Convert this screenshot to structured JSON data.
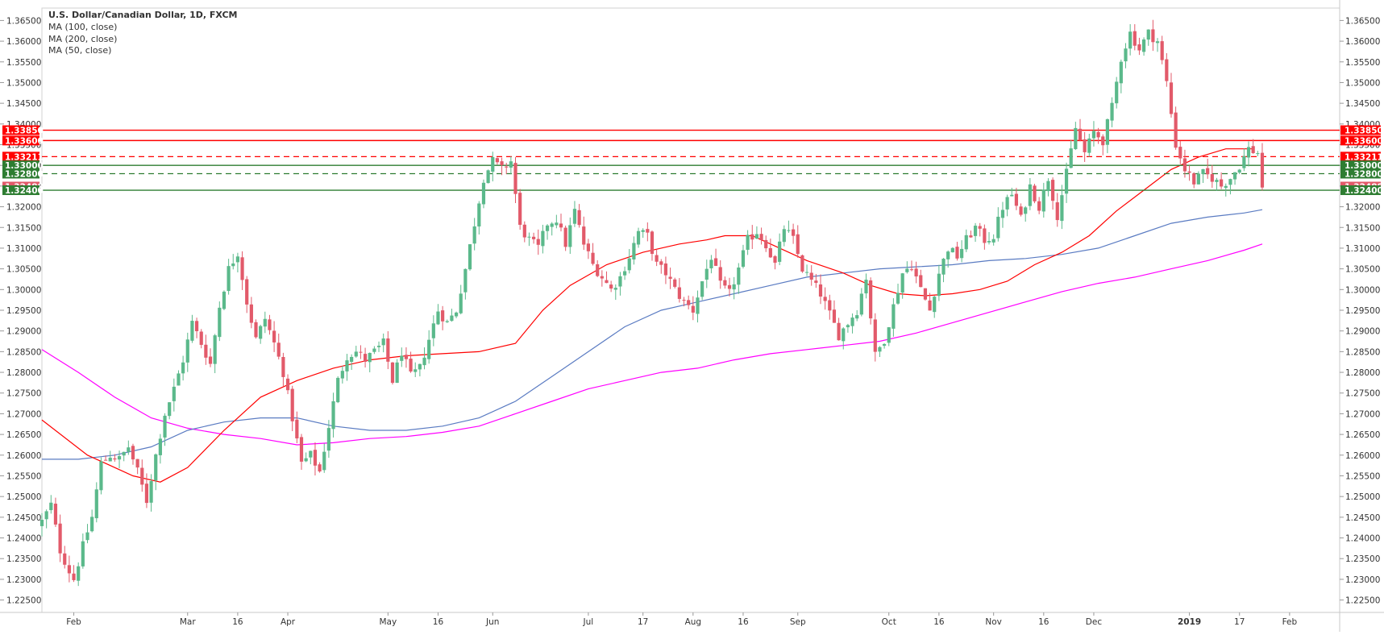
{
  "legend": {
    "title": "U.S. Dollar/Canadian Dollar, 1D, FXCM",
    "lines": [
      "MA (100, close)",
      "MA (200, close)",
      "MA (50, close)"
    ]
  },
  "colors": {
    "bull": "#5BB98B",
    "bear": "#E25A6A",
    "ma50": "#FF0000",
    "ma100": "#5A7BC2",
    "ma200": "#FF00FF",
    "resistance": "#FF0000",
    "support": "#2E7D32",
    "current_price": "#E25A6A"
  },
  "chart_data": {
    "type": "candlestick",
    "instrument": "U.S. Dollar/Canadian Dollar",
    "timeframe": "1D",
    "source": "FXCM",
    "ylim": [
      1.222,
      1.368
    ],
    "y_ticks": [
      "1.22500",
      "1.23000",
      "1.23500",
      "1.24000",
      "1.24500",
      "1.25000",
      "1.25500",
      "1.26000",
      "1.26500",
      "1.27000",
      "1.27500",
      "1.28000",
      "1.28500",
      "1.29000",
      "1.29500",
      "1.30000",
      "1.30500",
      "1.31000",
      "1.31500",
      "1.32000",
      "1.32500",
      "1.33000",
      "1.33500",
      "1.34000",
      "1.34500",
      "1.35000",
      "1.35500",
      "1.36000",
      "1.36500"
    ],
    "x_ticks": [
      {
        "label": "Feb",
        "day": 27,
        "bold": false
      },
      {
        "label": "Mar",
        "day": 52,
        "bold": false
      },
      {
        "label": "16",
        "day": 63,
        "bold": false
      },
      {
        "label": "Apr",
        "day": 74,
        "bold": false
      },
      {
        "label": "May",
        "day": 96,
        "bold": false
      },
      {
        "label": "16",
        "day": 107,
        "bold": false
      },
      {
        "label": "Jun",
        "day": 119,
        "bold": false
      },
      {
        "label": "Jul",
        "day": 140,
        "bold": false
      },
      {
        "label": "17",
        "day": 152,
        "bold": false
      },
      {
        "label": "Aug",
        "day": 163,
        "bold": false
      },
      {
        "label": "16",
        "day": 174,
        "bold": false
      },
      {
        "label": "Sep",
        "day": 186,
        "bold": false
      },
      {
        "label": "Oct",
        "day": 206,
        "bold": false
      },
      {
        "label": "16",
        "day": 217,
        "bold": false
      },
      {
        "label": "Nov",
        "day": 229,
        "bold": false
      },
      {
        "label": "16",
        "day": 240,
        "bold": false
      },
      {
        "label": "Dec",
        "day": 251,
        "bold": false
      },
      {
        "label": "2019",
        "day": 272,
        "bold": true
      },
      {
        "label": "17",
        "day": 283,
        "bold": false
      },
      {
        "label": "Feb",
        "day": 294,
        "bold": false
      }
    ],
    "x_range_days": [
      20,
      305
    ],
    "close_anchors": [
      [
        20,
        1.244
      ],
      [
        22,
        1.248
      ],
      [
        24,
        1.237
      ],
      [
        26,
        1.232
      ],
      [
        27,
        1.23
      ],
      [
        29,
        1.238
      ],
      [
        31,
        1.245
      ],
      [
        33,
        1.258
      ],
      [
        35,
        1.26
      ],
      [
        37,
        1.259
      ],
      [
        39,
        1.262
      ],
      [
        41,
        1.256
      ],
      [
        43,
        1.249
      ],
      [
        45,
        1.26
      ],
      [
        47,
        1.27
      ],
      [
        49,
        1.276
      ],
      [
        51,
        1.283
      ],
      [
        53,
        1.292
      ],
      [
        55,
        1.287
      ],
      [
        57,
        1.282
      ],
      [
        59,
        1.296
      ],
      [
        61,
        1.305
      ],
      [
        63,
        1.309
      ],
      [
        65,
        1.297
      ],
      [
        67,
        1.288
      ],
      [
        69,
        1.293
      ],
      [
        71,
        1.287
      ],
      [
        73,
        1.28
      ],
      [
        75,
        1.269
      ],
      [
        77,
        1.258
      ],
      [
        79,
        1.26
      ],
      [
        81,
        1.256
      ],
      [
        83,
        1.267
      ],
      [
        85,
        1.278
      ],
      [
        87,
        1.284
      ],
      [
        89,
        1.285
      ],
      [
        91,
        1.283
      ],
      [
        93,
        1.285
      ],
      [
        95,
        1.287
      ],
      [
        97,
        1.278
      ],
      [
        99,
        1.285
      ],
      [
        101,
        1.279
      ],
      [
        103,
        1.281
      ],
      [
        105,
        1.288
      ],
      [
        107,
        1.295
      ],
      [
        109,
        1.292
      ],
      [
        111,
        1.295
      ],
      [
        113,
        1.305
      ],
      [
        115,
        1.316
      ],
      [
        117,
        1.327
      ],
      [
        119,
        1.331
      ],
      [
        121,
        1.329
      ],
      [
        123,
        1.331
      ],
      [
        125,
        1.315
      ],
      [
        127,
        1.312
      ],
      [
        129,
        1.31
      ],
      [
        131,
        1.316
      ],
      [
        133,
        1.317
      ],
      [
        135,
        1.311
      ],
      [
        137,
        1.319
      ],
      [
        139,
        1.311
      ],
      [
        141,
        1.306
      ],
      [
        143,
        1.303
      ],
      [
        145,
        1.3
      ],
      [
        147,
        1.303
      ],
      [
        149,
        1.308
      ],
      [
        151,
        1.314
      ],
      [
        153,
        1.313
      ],
      [
        155,
        1.306
      ],
      [
        157,
        1.304
      ],
      [
        159,
        1.3
      ],
      [
        161,
        1.297
      ],
      [
        163,
        1.295
      ],
      [
        165,
        1.302
      ],
      [
        167,
        1.308
      ],
      [
        169,
        1.301
      ],
      [
        171,
        1.299
      ],
      [
        173,
        1.305
      ],
      [
        175,
        1.312
      ],
      [
        177,
        1.314
      ],
      [
        179,
        1.311
      ],
      [
        181,
        1.306
      ],
      [
        183,
        1.315
      ],
      [
        185,
        1.312
      ],
      [
        187,
        1.305
      ],
      [
        189,
        1.302
      ],
      [
        191,
        1.299
      ],
      [
        193,
        1.294
      ],
      [
        195,
        1.289
      ],
      [
        197,
        1.292
      ],
      [
        199,
        1.295
      ],
      [
        201,
        1.303
      ],
      [
        203,
        1.284
      ],
      [
        205,
        1.288
      ],
      [
        207,
        1.296
      ],
      [
        209,
        1.304
      ],
      [
        211,
        1.306
      ],
      [
        213,
        1.3
      ],
      [
        215,
        1.295
      ],
      [
        217,
        1.304
      ],
      [
        219,
        1.31
      ],
      [
        221,
        1.308
      ],
      [
        223,
        1.312
      ],
      [
        225,
        1.315
      ],
      [
        227,
        1.312
      ],
      [
        229,
        1.313
      ],
      [
        231,
        1.32
      ],
      [
        233,
        1.323
      ],
      [
        235,
        1.317
      ],
      [
        237,
        1.325
      ],
      [
        239,
        1.32
      ],
      [
        241,
        1.327
      ],
      [
        243,
        1.318
      ],
      [
        245,
        1.328
      ],
      [
        247,
        1.339
      ],
      [
        249,
        1.333
      ],
      [
        251,
        1.338
      ],
      [
        253,
        1.336
      ],
      [
        255,
        1.344
      ],
      [
        257,
        1.356
      ],
      [
        259,
        1.362
      ],
      [
        261,
        1.358
      ],
      [
        263,
        1.362
      ],
      [
        265,
        1.36
      ],
      [
        267,
        1.35
      ],
      [
        269,
        1.335
      ],
      [
        271,
        1.329
      ],
      [
        273,
        1.326
      ],
      [
        275,
        1.328
      ],
      [
        277,
        1.327
      ],
      [
        279,
        1.325
      ],
      [
        281,
        1.327
      ],
      [
        283,
        1.33
      ],
      [
        285,
        1.334
      ],
      [
        287,
        1.333
      ],
      [
        288,
        1.325
      ]
    ],
    "ma50": [
      [
        20,
        1.2685
      ],
      [
        30,
        1.26
      ],
      [
        40,
        1.255
      ],
      [
        46,
        1.2535
      ],
      [
        52,
        1.257
      ],
      [
        60,
        1.266
      ],
      [
        68,
        1.274
      ],
      [
        76,
        1.278
      ],
      [
        84,
        1.281
      ],
      [
        92,
        1.283
      ],
      [
        100,
        1.284
      ],
      [
        108,
        1.2845
      ],
      [
        116,
        1.285
      ],
      [
        124,
        1.287
      ],
      [
        130,
        1.295
      ],
      [
        136,
        1.301
      ],
      [
        144,
        1.306
      ],
      [
        152,
        1.309
      ],
      [
        160,
        1.311
      ],
      [
        166,
        1.312
      ],
      [
        170,
        1.313
      ],
      [
        176,
        1.313
      ],
      [
        182,
        1.31
      ],
      [
        188,
        1.307
      ],
      [
        196,
        1.304
      ],
      [
        202,
        1.301
      ],
      [
        208,
        1.299
      ],
      [
        214,
        1.2985
      ],
      [
        220,
        1.299
      ],
      [
        226,
        1.3
      ],
      [
        232,
        1.302
      ],
      [
        238,
        1.306
      ],
      [
        244,
        1.309
      ],
      [
        250,
        1.313
      ],
      [
        256,
        1.319
      ],
      [
        262,
        1.324
      ],
      [
        268,
        1.329
      ],
      [
        274,
        1.332
      ],
      [
        280,
        1.334
      ],
      [
        286,
        1.334
      ]
    ],
    "ma100": [
      [
        20,
        1.259
      ],
      [
        28,
        1.259
      ],
      [
        36,
        1.26
      ],
      [
        44,
        1.262
      ],
      [
        52,
        1.266
      ],
      [
        60,
        1.268
      ],
      [
        68,
        1.269
      ],
      [
        76,
        1.269
      ],
      [
        84,
        1.267
      ],
      [
        92,
        1.266
      ],
      [
        100,
        1.266
      ],
      [
        108,
        1.267
      ],
      [
        116,
        1.269
      ],
      [
        124,
        1.273
      ],
      [
        132,
        1.279
      ],
      [
        140,
        1.285
      ],
      [
        148,
        1.291
      ],
      [
        156,
        1.295
      ],
      [
        164,
        1.297
      ],
      [
        172,
        1.299
      ],
      [
        180,
        1.301
      ],
      [
        188,
        1.303
      ],
      [
        196,
        1.304
      ],
      [
        204,
        1.305
      ],
      [
        212,
        1.3055
      ],
      [
        220,
        1.306
      ],
      [
        228,
        1.307
      ],
      [
        236,
        1.3075
      ],
      [
        244,
        1.3085
      ],
      [
        252,
        1.31
      ],
      [
        260,
        1.313
      ],
      [
        268,
        1.316
      ],
      [
        276,
        1.3175
      ],
      [
        284,
        1.3185
      ],
      [
        288,
        1.3193
      ]
    ],
    "ma200": [
      [
        20,
        1.2855
      ],
      [
        28,
        1.28
      ],
      [
        36,
        1.274
      ],
      [
        44,
        1.269
      ],
      [
        52,
        1.2665
      ],
      [
        60,
        1.265
      ],
      [
        68,
        1.264
      ],
      [
        76,
        1.2625
      ],
      [
        84,
        1.263
      ],
      [
        92,
        1.264
      ],
      [
        100,
        1.2645
      ],
      [
        108,
        1.2655
      ],
      [
        116,
        1.267
      ],
      [
        124,
        1.27
      ],
      [
        132,
        1.273
      ],
      [
        140,
        1.276
      ],
      [
        148,
        1.278
      ],
      [
        156,
        1.28
      ],
      [
        164,
        1.281
      ],
      [
        172,
        1.283
      ],
      [
        180,
        1.2845
      ],
      [
        188,
        1.2855
      ],
      [
        196,
        1.2865
      ],
      [
        204,
        1.2875
      ],
      [
        212,
        1.2895
      ],
      [
        220,
        1.292
      ],
      [
        228,
        1.2945
      ],
      [
        236,
        1.297
      ],
      [
        244,
        1.2995
      ],
      [
        252,
        1.3015
      ],
      [
        260,
        1.303
      ],
      [
        268,
        1.305
      ],
      [
        276,
        1.307
      ],
      [
        284,
        1.3095
      ],
      [
        288,
        1.311
      ]
    ],
    "levels": [
      {
        "value": 1.3385,
        "label": "1.33850",
        "kind": "resistance",
        "style": "solid"
      },
      {
        "value": 1.336,
        "label": "1.33600",
        "kind": "resistance",
        "style": "solid"
      },
      {
        "value": 1.33211,
        "label": "1.33211",
        "kind": "resistance",
        "style": "dashed"
      },
      {
        "value": 1.33,
        "label": "1.33000",
        "kind": "support",
        "style": "solid"
      },
      {
        "value": 1.328,
        "label": "1.32800",
        "kind": "support",
        "style": "dashed"
      },
      {
        "value": 1.32488,
        "label": "1.32488",
        "kind": "current_price",
        "style": "none"
      },
      {
        "value": 1.324,
        "label": "1.32400",
        "kind": "support",
        "style": "solid"
      }
    ]
  }
}
